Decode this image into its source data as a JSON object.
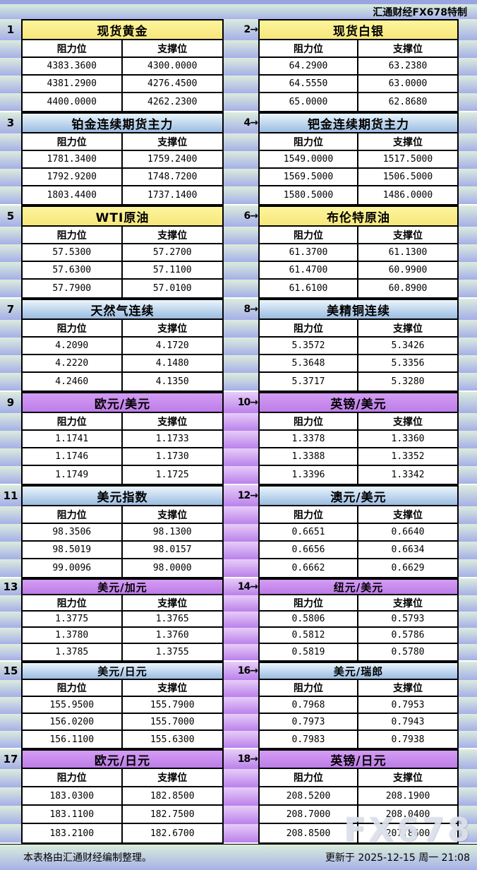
{
  "page": {
    "header_right": "汇通财经FX678特制",
    "footer_left": "本表格由汇通财经编制整理。",
    "footer_right": "更新于 2025-12-15 周一 21:08",
    "watermark": "FX678"
  },
  "labels": {
    "resistance": "阻力位",
    "support": "支撑位"
  },
  "colors": {
    "yellow_title": "#f9ee8c",
    "blue_title_top": "#eaf5fc",
    "blue_title_bottom": "#9bbce2",
    "purple_title": "#c88bef",
    "stripe_top": "#dcecdc",
    "stripe_bottom": "#a5afe8",
    "purple_stripe_top": "#e7cdf9",
    "purple_stripe_bottom": "#ba81ea",
    "topbar": "#9aa4e2"
  },
  "sections": [
    {
      "size": "a",
      "gap_style": "bluegreen",
      "left": {
        "num": "1",
        "title": "现货黄金",
        "style": "yellow",
        "rows": [
          [
            "4383.3600",
            "4300.0000"
          ],
          [
            "4381.2900",
            "4276.4500"
          ],
          [
            "4400.0000",
            "4262.2300"
          ]
        ]
      },
      "right": {
        "num": "2→",
        "title": "现货白银",
        "style": "yellow",
        "rows": [
          [
            "64.2900",
            "63.2380"
          ],
          [
            "64.5550",
            "63.0000"
          ],
          [
            "65.0000",
            "62.8680"
          ]
        ]
      }
    },
    {
      "size": "a",
      "gap_style": "bluegreen",
      "left": {
        "num": "3",
        "title": "铂金连续期货主力",
        "style": "blue",
        "rows": [
          [
            "1781.3400",
            "1759.2400"
          ],
          [
            "1792.9200",
            "1748.7200"
          ],
          [
            "1803.4400",
            "1737.1400"
          ]
        ]
      },
      "right": {
        "num": "4→",
        "title": "钯金连续期货主力",
        "style": "blue",
        "rows": [
          [
            "1549.0000",
            "1517.5000"
          ],
          [
            "1569.5000",
            "1506.5000"
          ],
          [
            "1580.5000",
            "1486.0000"
          ]
        ]
      }
    },
    {
      "size": "a",
      "gap_style": "bluegreen",
      "left": {
        "num": "5",
        "title": "WTI原油",
        "style": "yellow",
        "rows": [
          [
            "57.5300",
            "57.2700"
          ],
          [
            "57.6300",
            "57.1100"
          ],
          [
            "57.7900",
            "57.0100"
          ]
        ]
      },
      "right": {
        "num": "6→",
        "title": "布伦特原油",
        "style": "yellow",
        "rows": [
          [
            "61.3700",
            "61.1300"
          ],
          [
            "61.4700",
            "60.9900"
          ],
          [
            "61.6100",
            "60.8900"
          ]
        ]
      }
    },
    {
      "size": "a",
      "gap_style": "bluegreen",
      "left": {
        "num": "7",
        "title": "天然气连续",
        "style": "blue",
        "rows": [
          [
            "4.2090",
            "4.1720"
          ],
          [
            "4.2220",
            "4.1480"
          ],
          [
            "4.2460",
            "4.1350"
          ]
        ]
      },
      "right": {
        "num": "8→",
        "title": "美精铜连续",
        "style": "blue",
        "rows": [
          [
            "5.3572",
            "5.3426"
          ],
          [
            "5.3648",
            "5.3356"
          ],
          [
            "5.3717",
            "5.3280"
          ]
        ]
      }
    },
    {
      "size": "a",
      "gap_style": "purple",
      "left": {
        "num": "9",
        "title": "欧元/美元",
        "style": "purple",
        "rows": [
          [
            "1.1741",
            "1.1733"
          ],
          [
            "1.1746",
            "1.1730"
          ],
          [
            "1.1749",
            "1.1725"
          ]
        ]
      },
      "right": {
        "num": "10→",
        "title": "英镑/美元",
        "style": "purple",
        "rows": [
          [
            "1.3378",
            "1.3360"
          ],
          [
            "1.3388",
            "1.3352"
          ],
          [
            "1.3396",
            "1.3342"
          ]
        ]
      }
    },
    {
      "size": "a",
      "gap_style": "purple",
      "left": {
        "num": "11",
        "title": "美元指数",
        "style": "blue",
        "rows": [
          [
            "98.3506",
            "98.1300"
          ],
          [
            "98.5019",
            "98.0157"
          ],
          [
            "99.0096",
            "98.0000"
          ]
        ]
      },
      "right": {
        "num": "12→",
        "title": "澳元/美元",
        "style": "blue",
        "rows": [
          [
            "0.6651",
            "0.6640"
          ],
          [
            "0.6656",
            "0.6634"
          ],
          [
            "0.6662",
            "0.6629"
          ]
        ]
      }
    },
    {
      "size": "b",
      "gap_style": "purple",
      "left": {
        "num": "13",
        "title": "美元/加元",
        "style": "purple",
        "rows": [
          [
            "1.3775",
            "1.3765"
          ],
          [
            "1.3780",
            "1.3760"
          ],
          [
            "1.3785",
            "1.3755"
          ]
        ]
      },
      "right": {
        "num": "14→",
        "title": "纽元/美元",
        "style": "purple",
        "rows": [
          [
            "0.5806",
            "0.5793"
          ],
          [
            "0.5812",
            "0.5786"
          ],
          [
            "0.5819",
            "0.5780"
          ]
        ]
      }
    },
    {
      "size": "c",
      "gap_style": "purple",
      "left": {
        "num": "15",
        "title": "美元/日元",
        "style": "blue",
        "rows": [
          [
            "155.9500",
            "155.7900"
          ],
          [
            "156.0200",
            "155.7000"
          ],
          [
            "156.1100",
            "155.6300"
          ]
        ]
      },
      "right": {
        "num": "16→",
        "title": "美元/瑞郎",
        "style": "blue",
        "rows": [
          [
            "0.7968",
            "0.7953"
          ],
          [
            "0.7973",
            "0.7943"
          ],
          [
            "0.7983",
            "0.7938"
          ]
        ]
      }
    },
    {
      "size": "d",
      "gap_style": "purple",
      "left": {
        "num": "17",
        "title": "欧元/日元",
        "style": "purple",
        "rows": [
          [
            "183.0300",
            "182.8500"
          ],
          [
            "183.1100",
            "182.7500"
          ],
          [
            "183.2100",
            "182.6700"
          ]
        ]
      },
      "right": {
        "num": "18→",
        "title": "英镑/日元",
        "style": "purple",
        "rows": [
          [
            "208.5200",
            "208.1900"
          ],
          [
            "208.7000",
            "208.0400"
          ],
          [
            "208.8500",
            "207.8600"
          ]
        ]
      }
    }
  ]
}
